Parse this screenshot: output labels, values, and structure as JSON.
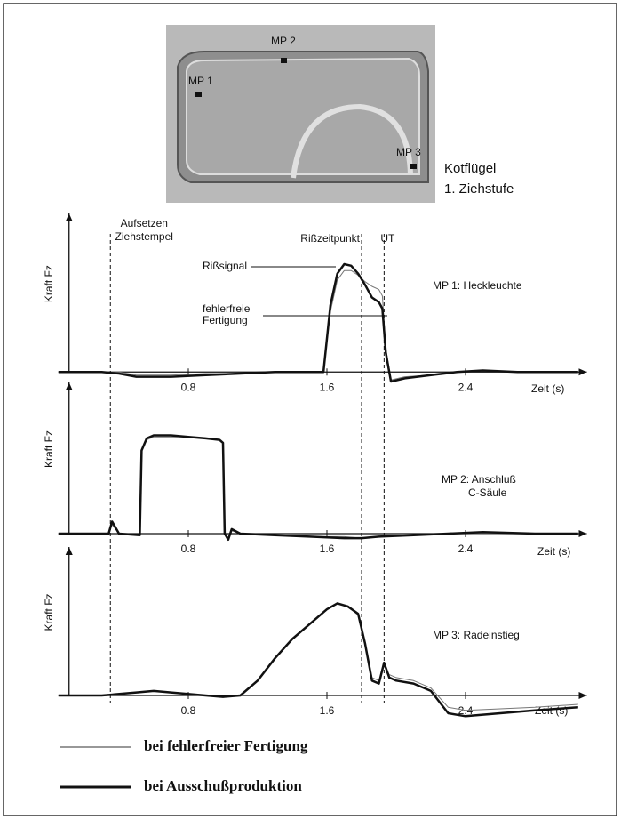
{
  "photo": {
    "labels": [
      "MP 1",
      "MP 2",
      "MP 3"
    ],
    "caption": [
      "Kotflügel",
      "1. Ziehstufe"
    ]
  },
  "markers": [
    {
      "x": 0.35,
      "label": [
        "Aufsetzen",
        "Ziehstempel"
      ]
    },
    {
      "x": 1.8,
      "label": [
        "Rißzeitpunkt"
      ]
    },
    {
      "x": 1.93,
      "label": [
        "UT"
      ]
    }
  ],
  "chart_data": [
    {
      "type": "line",
      "title": [
        "MP 1: Heckleuchte"
      ],
      "x_label": "Zeit (s)",
      "y_label": "Kraft Fz",
      "xlim": [
        0.05,
        3.1
      ],
      "ylim": [
        -15,
        100
      ],
      "xticks": [
        0.8,
        1.6,
        2.4
      ],
      "annotations": [
        "Rißsignal",
        [
          "fehlerfreie",
          "Fertigung"
        ]
      ],
      "x": [
        0.05,
        0.3,
        0.4,
        0.5,
        0.7,
        0.9,
        1.1,
        1.3,
        1.5,
        1.58,
        1.62,
        1.66,
        1.7,
        1.74,
        1.78,
        1.82,
        1.86,
        1.9,
        1.92,
        1.94,
        1.97,
        2.05,
        2.2,
        2.35,
        2.5,
        2.7,
        3.05
      ],
      "series": [
        {
          "name": "bei fehlerfreier Fertigung",
          "color": "#777777",
          "width": 1,
          "values": [
            0,
            0,
            0,
            -2,
            -2,
            -1,
            -1,
            0,
            0,
            0,
            38,
            58,
            64,
            64,
            61,
            57,
            54,
            52,
            48,
            15,
            -5,
            -3,
            -2,
            0,
            1,
            0,
            0
          ]
        },
        {
          "name": "bei Ausschußproduktion",
          "color": "#111111",
          "width": 2.5,
          "values": [
            0,
            0,
            -1,
            -3,
            -3,
            -2,
            -1,
            0,
            0,
            0,
            42,
            62,
            68,
            67,
            62,
            55,
            47,
            44,
            40,
            12,
            -6,
            -4,
            -2,
            0,
            1,
            0,
            0
          ]
        }
      ]
    },
    {
      "type": "line",
      "title": [
        "MP 2: Anschluß",
        "C-Säule"
      ],
      "x_label": "Zeit (s)",
      "y_label": "Kraft Fz",
      "xlim": [
        0.05,
        3.1
      ],
      "ylim": [
        -15,
        100
      ],
      "xticks": [
        0.8,
        1.6,
        2.4
      ],
      "x": [
        0.05,
        0.3,
        0.34,
        0.36,
        0.4,
        0.52,
        0.53,
        0.56,
        0.6,
        0.7,
        0.8,
        0.9,
        0.98,
        1.0,
        1.01,
        1.03,
        1.05,
        1.1,
        1.3,
        1.5,
        1.7,
        1.8,
        1.9,
        2.1,
        2.3,
        2.5,
        2.8,
        3.05
      ],
      "series": [
        {
          "color": "#777777",
          "width": 1,
          "values": [
            0,
            0,
            0,
            6,
            0,
            -1,
            54,
            62,
            64,
            64,
            64,
            63,
            62,
            60,
            0,
            -3,
            2,
            0,
            -1,
            -2,
            -2,
            -3,
            -2,
            -1,
            0,
            0,
            0,
            0
          ]
        },
        {
          "color": "#111111",
          "width": 2.5,
          "values": [
            0,
            0,
            0,
            8,
            0,
            -1,
            55,
            63,
            65,
            65,
            64,
            63,
            62,
            60,
            0,
            -4,
            3,
            0,
            -1,
            -2,
            -3,
            -3,
            -2,
            -1,
            0,
            1,
            0,
            0
          ]
        }
      ]
    },
    {
      "type": "line",
      "title": [
        "MP 3: Radeinstieg"
      ],
      "x_label": "Zeit (s)",
      "y_label": "Kraft Fz",
      "xlim": [
        0.05,
        3.1
      ],
      "ylim": [
        -15,
        100
      ],
      "xticks": [
        0.8,
        1.6,
        2.4
      ],
      "x": [
        0.05,
        0.3,
        0.5,
        0.6,
        0.7,
        0.9,
        1.0,
        1.1,
        1.2,
        1.3,
        1.4,
        1.5,
        1.6,
        1.66,
        1.72,
        1.78,
        1.82,
        1.86,
        1.9,
        1.93,
        1.96,
        2.0,
        2.1,
        2.2,
        2.3,
        2.4,
        2.6,
        2.8,
        3.05
      ],
      "series": [
        {
          "color": "#777777",
          "width": 1,
          "values": [
            0,
            0,
            2,
            3,
            2,
            0,
            -1,
            0,
            10,
            25,
            38,
            48,
            58,
            62,
            60,
            54,
            36,
            12,
            10,
            20,
            14,
            12,
            10,
            5,
            -8,
            -10,
            -9,
            -8,
            -6
          ]
        },
        {
          "color": "#111111",
          "width": 2.5,
          "values": [
            0,
            0,
            2,
            3,
            2,
            0,
            -1,
            0,
            10,
            25,
            38,
            48,
            58,
            62,
            60,
            55,
            35,
            10,
            8,
            22,
            12,
            10,
            8,
            3,
            -12,
            -14,
            -12,
            -10,
            -8
          ]
        }
      ]
    }
  ]
}
